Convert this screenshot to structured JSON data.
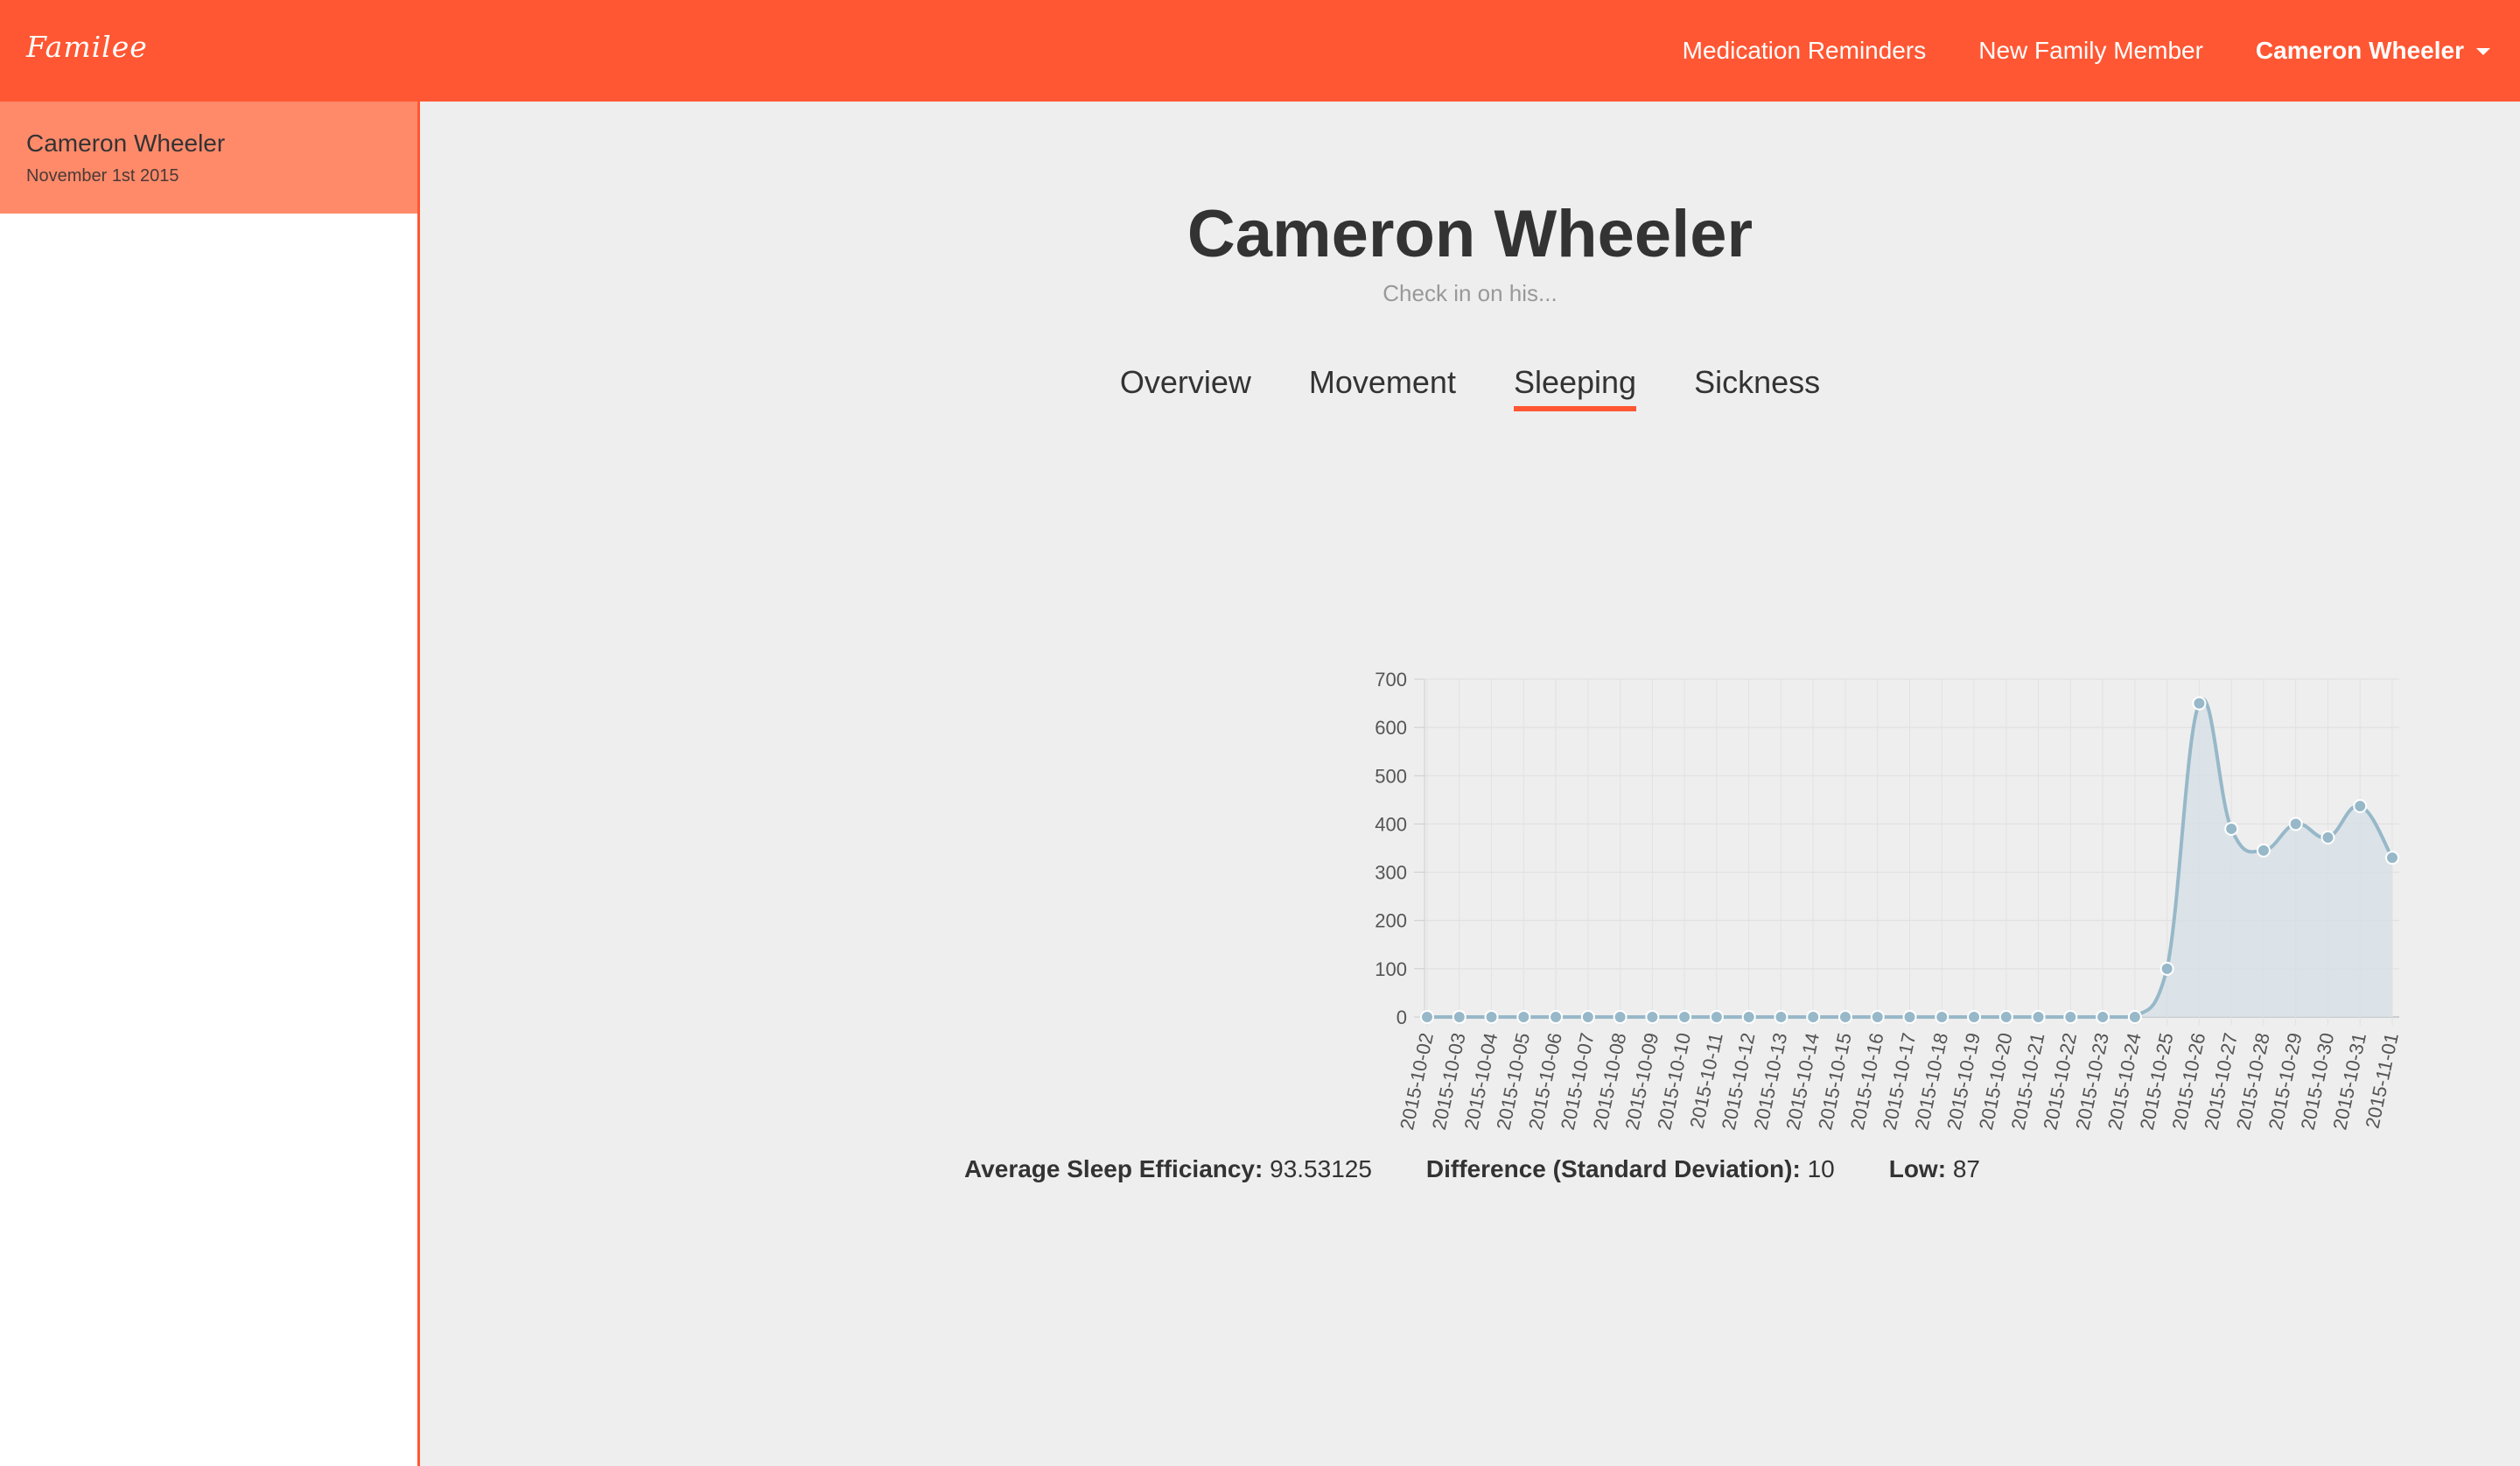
{
  "app": {
    "brand": "Familee"
  },
  "navbar": {
    "medication_reminders": "Medication Reminders",
    "new_family_member": "New Family Member",
    "user_name": "Cameron Wheeler"
  },
  "sidebar": {
    "items": [
      {
        "name": "Cameron Wheeler",
        "date": "November 1st 2015"
      }
    ]
  },
  "main": {
    "title": "Cameron Wheeler",
    "subtitle": "Check in on his...",
    "tabs": [
      {
        "label": "Overview",
        "active": false
      },
      {
        "label": "Movement",
        "active": false
      },
      {
        "label": "Sleeping",
        "active": true
      },
      {
        "label": "Sickness",
        "active": false
      }
    ]
  },
  "stats": {
    "avg_label": "Average Sleep Efficiancy:",
    "avg_value": "93.53125",
    "diff_label": "Difference (Standard Deviation):",
    "diff_value": "10",
    "low_label": "Low:",
    "low_value": "87"
  },
  "colors": {
    "accent": "#ff5733",
    "sidebar_active": "#ff8a6a",
    "line": "#97b8c8",
    "fill": "#d6e0e6"
  },
  "chart_data": {
    "type": "area",
    "title": "",
    "xlabel": "",
    "ylabel": "",
    "ylim": [
      0,
      700
    ],
    "yticks": [
      0,
      100,
      200,
      300,
      400,
      500,
      600,
      700
    ],
    "ytick_labels": [
      "0",
      "100",
      "200",
      "300",
      "400",
      "500",
      "600",
      "700"
    ],
    "grid": true,
    "categories": [
      "2015-10-02",
      "2015-10-03",
      "2015-10-04",
      "2015-10-05",
      "2015-10-06",
      "2015-10-07",
      "2015-10-08",
      "2015-10-09",
      "2015-10-10",
      "2015-10-11",
      "2015-10-12",
      "2015-10-13",
      "2015-10-14",
      "2015-10-15",
      "2015-10-16",
      "2015-10-17",
      "2015-10-18",
      "2015-10-19",
      "2015-10-20",
      "2015-10-21",
      "2015-10-22",
      "2015-10-23",
      "2015-10-24",
      "2015-10-25",
      "2015-10-26",
      "2015-10-27",
      "2015-10-28",
      "2015-10-29",
      "2015-10-30",
      "2015-10-31",
      "2015-11-01"
    ],
    "series": [
      {
        "values": [
          0,
          0,
          0,
          0,
          0,
          0,
          0,
          0,
          0,
          0,
          0,
          0,
          0,
          0,
          0,
          0,
          0,
          0,
          0,
          0,
          0,
          0,
          0,
          100,
          650,
          390,
          345,
          400,
          372,
          437,
          330
        ]
      }
    ]
  }
}
